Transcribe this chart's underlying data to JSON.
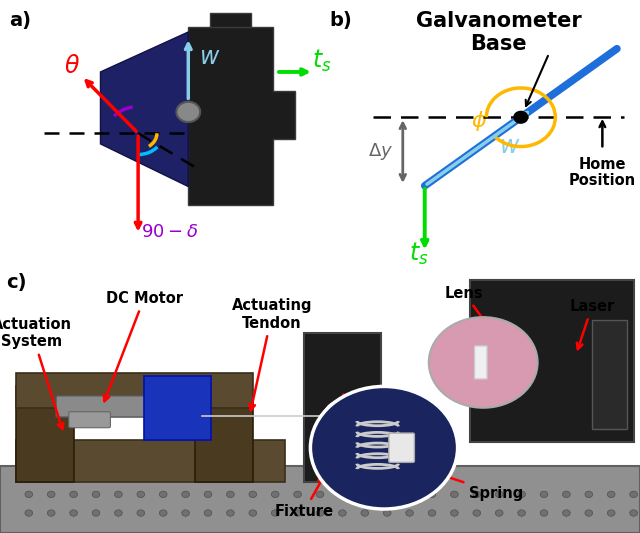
{
  "fig_width": 6.4,
  "fig_height": 5.33,
  "bg_color": "#ffffff",
  "colors": {
    "red": "#FF0000",
    "green": "#00DD00",
    "blue": "#1E6FD9",
    "light_blue": "#87CEEB",
    "purple": "#800080",
    "cyan": "#00BFFF",
    "gold": "#FFB800",
    "gray": "#808080",
    "black": "#000000",
    "white": "#FFFFFF",
    "dark_blue_mirror": "#1E2166",
    "dark_housing": "#1a1a1a",
    "brown_base": "#6B5A3A",
    "table_gray": "#A0A0A0"
  },
  "panel_a_label": "a)",
  "panel_b_label": "b)",
  "panel_c_label": "c)",
  "panel_b_title": "Galvanometer\nBase"
}
